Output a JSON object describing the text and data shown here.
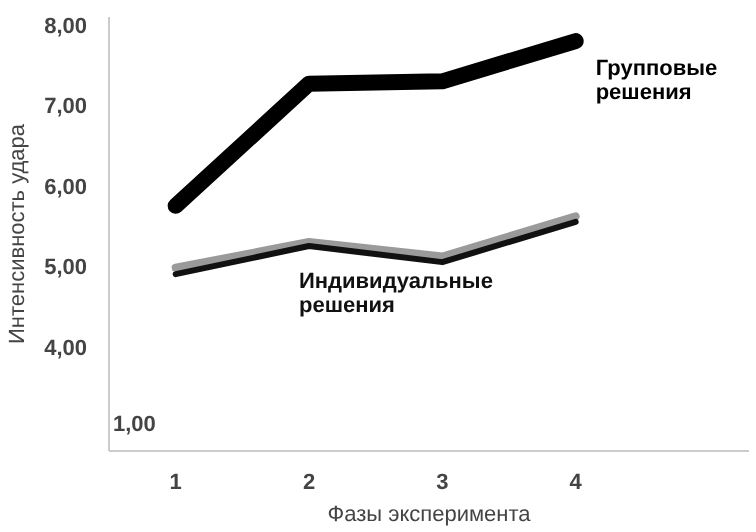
{
  "chart_data": {
    "type": "line",
    "xlabel": "Фазы эксперимента",
    "ylabel": "Интенсивность удара",
    "x": [
      1,
      2,
      3,
      4
    ],
    "xlim": [
      0.5,
      5.3
    ],
    "ylim": [
      2.7,
      8.1
    ],
    "xticks": [
      1,
      2,
      3,
      4
    ],
    "annotations": [
      "1,00"
    ],
    "yticks": [
      {
        "value": 4,
        "label": "4,00"
      },
      {
        "value": 5,
        "label": "5,00"
      },
      {
        "value": 6,
        "label": "6,00"
      },
      {
        "value": 7,
        "label": "7,00"
      },
      {
        "value": 8,
        "label": "8,00"
      }
    ],
    "grid": false,
    "marker": "none",
    "line_style": "solid",
    "series": [
      {
        "name": "Групповые решения",
        "color": "#000000",
        "values": [
          5.75,
          7.27,
          7.3,
          7.8
        ]
      },
      {
        "color": "#9a9a9a",
        "values": [
          4.98,
          5.3,
          5.12,
          5.62
        ]
      },
      {
        "name": "Индивидуальные решения",
        "color": "#111111",
        "values": [
          4.9,
          5.25,
          5.05,
          5.55
        ]
      }
    ]
  }
}
